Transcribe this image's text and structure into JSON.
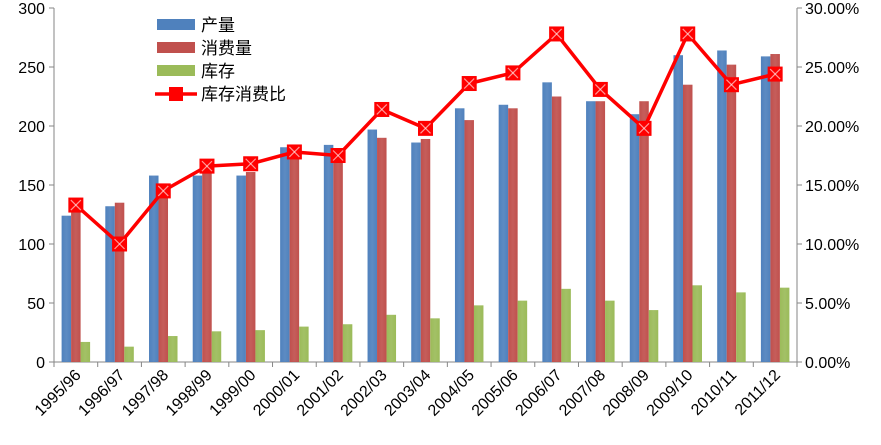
{
  "chart_data": {
    "type": "bar",
    "categories": [
      "1995/96",
      "1996/97",
      "1997/98",
      "1998/99",
      "1999/00",
      "2000/01",
      "2001/02",
      "2002/03",
      "2003/04",
      "2004/05",
      "2005/06",
      "2006/07",
      "2007/08",
      "2008/09",
      "2009/10",
      "2010/11",
      "2011/12"
    ],
    "series": [
      {
        "name": "产量",
        "type": "bar",
        "axis": "left",
        "color": "#4F81BD",
        "values": [
          124,
          132,
          158,
          158,
          158,
          182,
          184,
          197,
          186,
          215,
          218,
          237,
          221,
          210,
          260,
          264,
          259
        ]
      },
      {
        "name": "消费量",
        "type": "bar",
        "axis": "left",
        "color": "#C0504D",
        "values": [
          133,
          135,
          148,
          166,
          161,
          176,
          180,
          190,
          189,
          205,
          215,
          225,
          221,
          221,
          235,
          252,
          261
        ]
      },
      {
        "name": "库存",
        "type": "bar",
        "axis": "left",
        "color": "#9BBB59",
        "values": [
          17,
          13,
          22,
          26,
          27,
          30,
          32,
          40,
          37,
          48,
          52,
          62,
          52,
          44,
          65,
          59,
          63
        ]
      },
      {
        "name": "库存消费比",
        "type": "line",
        "axis": "right",
        "color": "#FF0000",
        "values": [
          0.133,
          0.1,
          0.145,
          0.166,
          0.168,
          0.178,
          0.175,
          0.214,
          0.198,
          0.236,
          0.245,
          0.278,
          0.231,
          0.198,
          0.278,
          0.235,
          0.244
        ]
      }
    ],
    "y_left": {
      "min": 0,
      "max": 300,
      "step": 50,
      "ticks": [
        "0",
        "50",
        "100",
        "150",
        "200",
        "250",
        "300"
      ]
    },
    "y_right": {
      "min": 0,
      "max": 0.3,
      "step": 0.05,
      "ticks": [
        "0.00%",
        "5.00%",
        "10.00%",
        "15.00%",
        "20.00%",
        "25.00%",
        "30.00%"
      ]
    },
    "grid": false,
    "legend": {
      "position": "top-left",
      "items": [
        "产量",
        "消费量",
        "库存",
        "库存消费比"
      ]
    },
    "title": "",
    "xlabel": "",
    "ylabel": ""
  }
}
